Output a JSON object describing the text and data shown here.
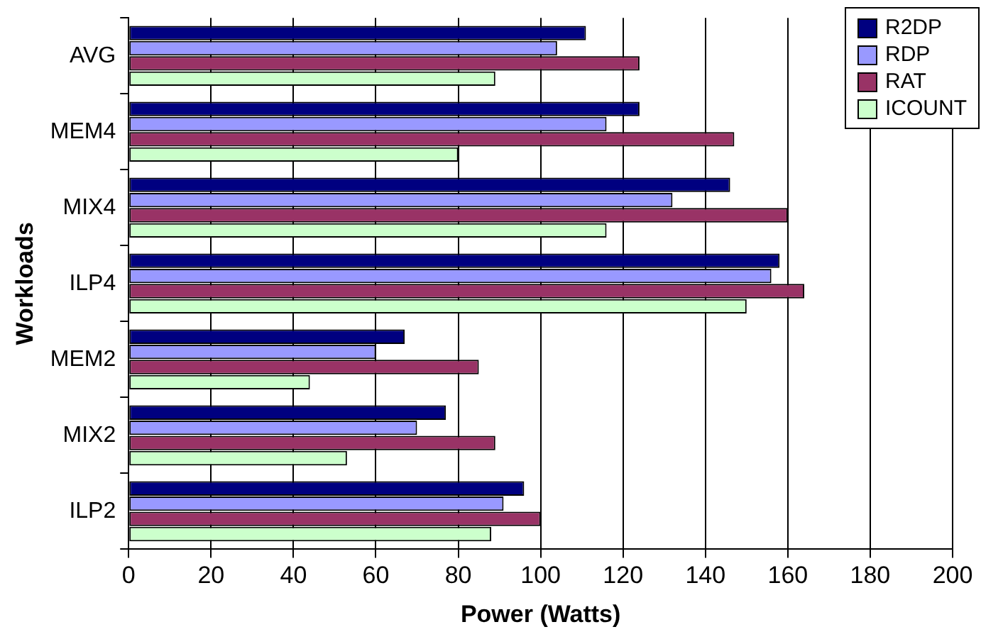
{
  "chart_data": {
    "type": "bar",
    "orientation": "horizontal",
    "xlabel": "Power (Watts)",
    "ylabel": "Workloads",
    "categories": [
      "AVG",
      "MEM4",
      "MIX4",
      "ILP4",
      "MEM2",
      "MIX2",
      "ILP2"
    ],
    "series": [
      {
        "name": "R2DP",
        "color": "#000080",
        "values": [
          111,
          124,
          146,
          158,
          67,
          77,
          96
        ]
      },
      {
        "name": "RDP",
        "color": "#9999ff",
        "values": [
          104,
          116,
          132,
          156,
          60,
          70,
          91
        ]
      },
      {
        "name": "RAT",
        "color": "#993366",
        "values": [
          124,
          147,
          160,
          164,
          85,
          89,
          100
        ]
      },
      {
        "name": "ICOUNT",
        "color": "#ccffcc",
        "values": [
          89,
          80,
          116,
          150,
          44,
          53,
          88
        ]
      }
    ],
    "xlim": [
      0,
      200
    ],
    "xticks": [
      0,
      20,
      40,
      60,
      80,
      100,
      120,
      140,
      160,
      180,
      200
    ],
    "grid": "x",
    "legend": "top right"
  }
}
